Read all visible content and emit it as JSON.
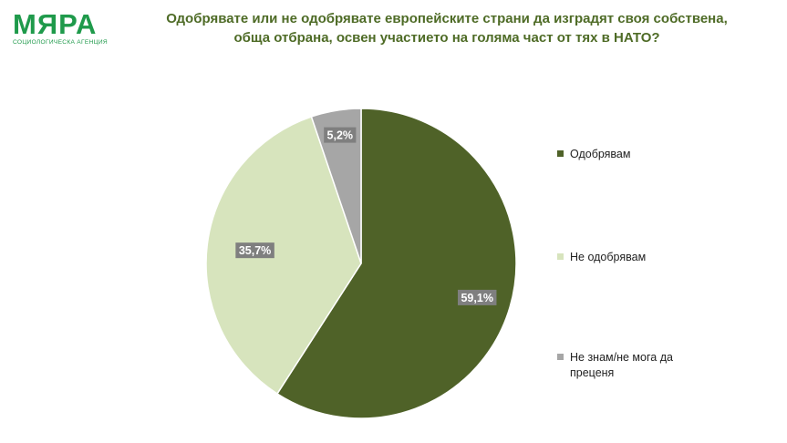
{
  "logo": {
    "name": "МЯРА",
    "subtitle": "СОЦИОЛОГИЧЕСКА АГЕНЦИЯ"
  },
  "title": {
    "line1": "Одобрявате или не одобрявате европейските страни да изградят своя собствена,",
    "line2": "обща отбрана, освен участието на голяма част от тях в НАТО?"
  },
  "chart_data": {
    "type": "pie",
    "title": "Одобрявате или не одобрявате европейските страни да изградят своя собствена, обща отбрана, освен участието на голяма част от тях в НАТО?",
    "categories": [
      "Одобрявам",
      "Не одобрявам",
      "Не знам/не мога да преценя"
    ],
    "values": [
      59.1,
      35.7,
      5.2
    ],
    "data_labels": [
      "59,1%",
      "35,7%",
      "5,2%"
    ],
    "colors": [
      "#4f6228",
      "#d7e4bd",
      "#a6a6a6"
    ],
    "label_box_color": "#7f7f7f",
    "legend_position": "right"
  }
}
